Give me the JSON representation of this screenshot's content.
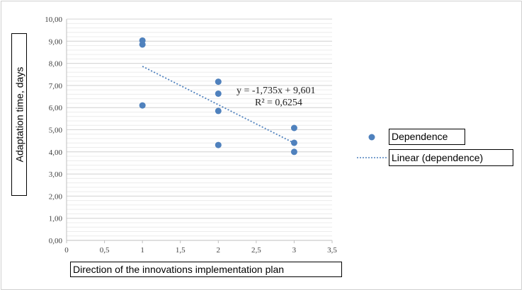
{
  "chart_data": {
    "type": "scatter",
    "xlabel": "Direction of the innovations implementation plan",
    "ylabel": "Adaptation time, days",
    "xlim": [
      0,
      3.5
    ],
    "ylim": [
      0,
      10
    ],
    "x_ticks": [
      "0",
      "0,5",
      "1",
      "1,5",
      "2",
      "2,5",
      "3",
      "3,5"
    ],
    "y_ticks": [
      "0,00",
      "1,00",
      "2,00",
      "3,00",
      "4,00",
      "5,00",
      "6,00",
      "7,00",
      "8,00",
      "9,00",
      "10,00"
    ],
    "grid": true,
    "legend_position": "right",
    "series": [
      {
        "name": "Dependence",
        "color": "#4f81bd",
        "points": [
          {
            "x": 1,
            "y": 9.03
          },
          {
            "x": 1,
            "y": 8.85
          },
          {
            "x": 1,
            "y": 6.1
          },
          {
            "x": 2,
            "y": 7.17
          },
          {
            "x": 2,
            "y": 6.63
          },
          {
            "x": 2,
            "y": 5.85
          },
          {
            "x": 2,
            "y": 4.31
          },
          {
            "x": 3,
            "y": 5.08
          },
          {
            "x": 3,
            "y": 4.41
          },
          {
            "x": 3,
            "y": 4.0
          }
        ]
      }
    ],
    "trendline": {
      "name": "Linear (dependence)",
      "color": "#4f81bd",
      "slope": -1.735,
      "intercept": 9.601,
      "x_range": [
        1,
        3
      ],
      "equation": "y = -1,735x + 9,601",
      "r_squared": "R² = 0,6254"
    }
  }
}
